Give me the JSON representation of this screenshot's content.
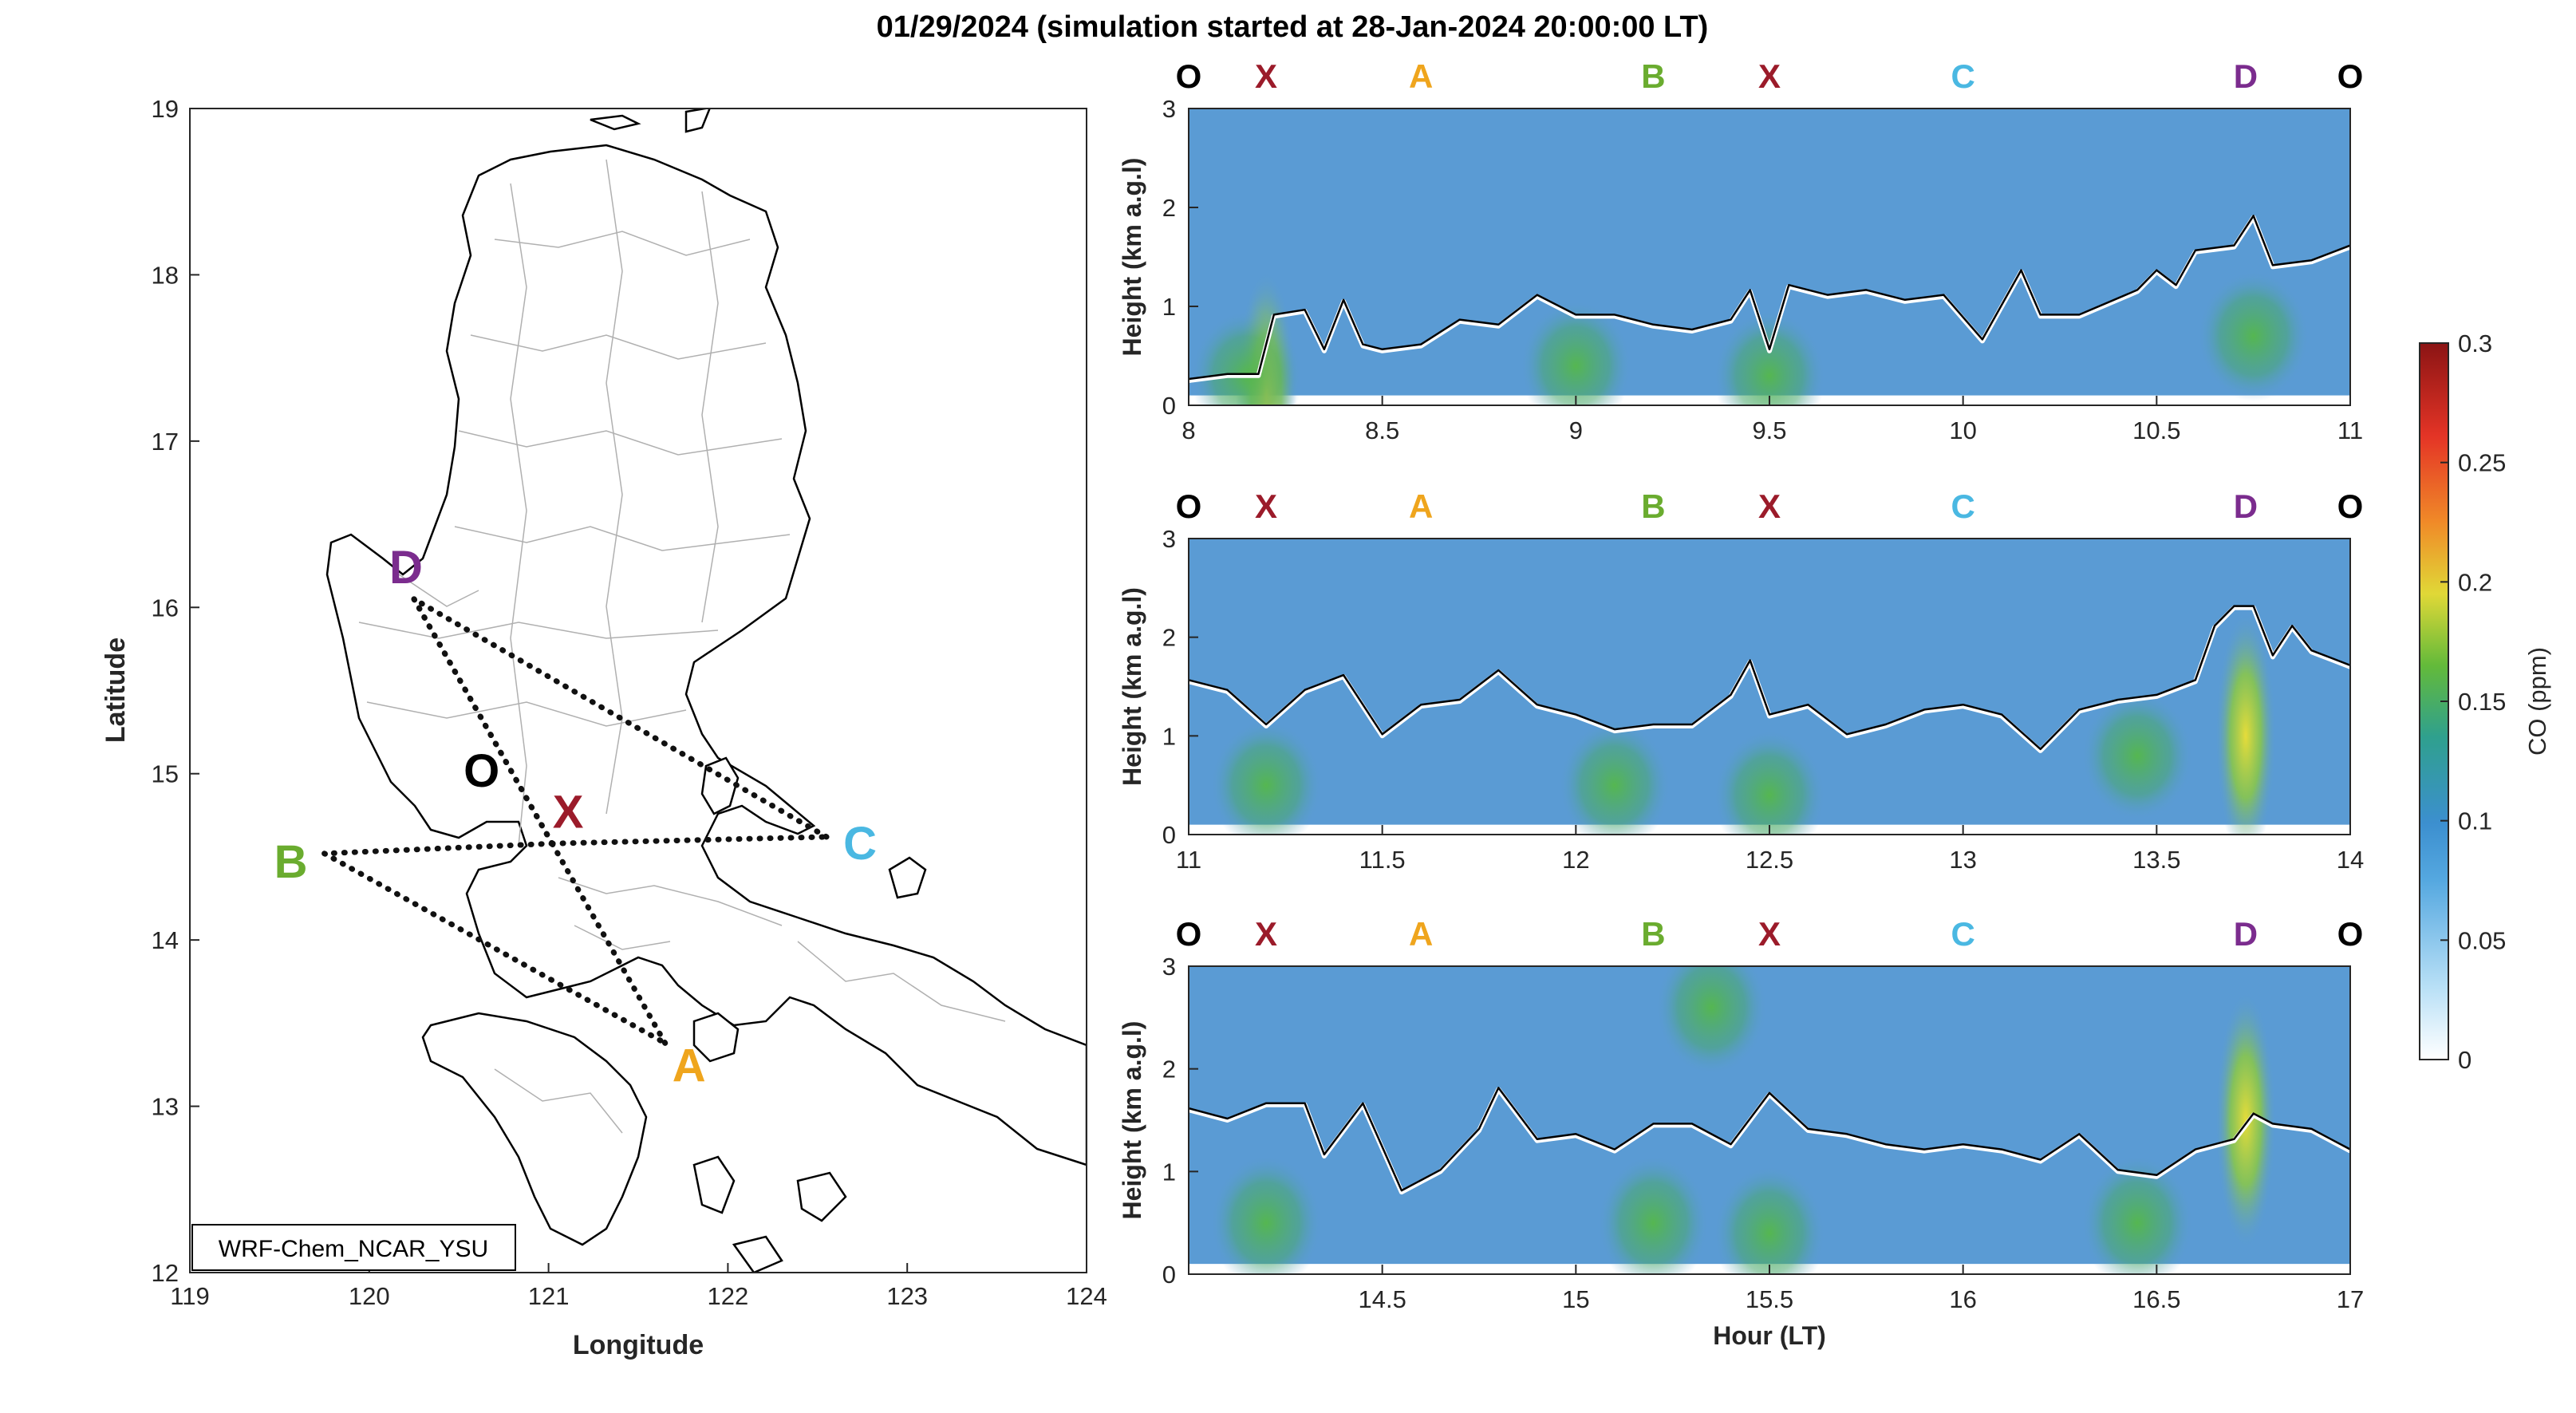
{
  "title": "01/29/2024 (simulation started at 28-Jan-2024 20:00:00 LT)",
  "colors": {
    "field_base": "#5a9bd4",
    "pbl_line": "#000000",
    "route": "#111111",
    "label_O": "#000000",
    "label_X": "#9b1b2a",
    "label_A": "#efa51d",
    "label_B": "#6aac2f",
    "label_C": "#4ab8e2",
    "label_D": "#7b2c8e"
  },
  "map": {
    "model_label": "WRF-Chem_NCAR_YSU",
    "xlabel": "Longitude",
    "ylabel": "Latitude",
    "xlim": [
      119,
      124
    ],
    "ylim": [
      12,
      19
    ],
    "xticks": [
      "119",
      "120",
      "121",
      "122",
      "123",
      "124"
    ],
    "yticks": [
      "12",
      "13",
      "14",
      "15",
      "16",
      "17",
      "18",
      "19"
    ],
    "points": [
      {
        "name": "D",
        "lon": 120.25,
        "lat": 16.05,
        "color": "#7b2c8e"
      },
      {
        "name": "O",
        "lon": 120.68,
        "lat": 14.98,
        "color": "#000000"
      },
      {
        "name": "X",
        "lon": 121.02,
        "lat": 14.58,
        "color": "#9b1b2a"
      },
      {
        "name": "C",
        "lon": 122.55,
        "lat": 14.62,
        "color": "#4ab8e2"
      },
      {
        "name": "B",
        "lon": 119.75,
        "lat": 14.52,
        "color": "#6aac2f"
      },
      {
        "name": "A",
        "lon": 121.65,
        "lat": 13.38,
        "color": "#efa51d"
      }
    ],
    "route_order": [
      "D",
      "X",
      "C",
      "D",
      "X",
      "B",
      "A",
      "X"
    ]
  },
  "chart_data": [
    {
      "type": "heatmap",
      "xlim": [
        8,
        11
      ],
      "ylim": [
        0,
        3
      ],
      "xticks": [
        "8",
        "8.5",
        "9",
        "9.5",
        "10",
        "10.5",
        "11"
      ],
      "yticks": [
        "0",
        "1",
        "2",
        "3"
      ],
      "ylabel": "Height (km a.g.l)",
      "xlabel": "",
      "route_labels": [
        {
          "t": 8.0,
          "name": "O"
        },
        {
          "t": 8.2,
          "name": "X"
        },
        {
          "t": 8.6,
          "name": "A"
        },
        {
          "t": 9.2,
          "name": "B"
        },
        {
          "t": 9.5,
          "name": "X"
        },
        {
          "t": 10.0,
          "name": "C"
        },
        {
          "t": 10.73,
          "name": "D"
        },
        {
          "t": 11.0,
          "name": "O"
        }
      ],
      "pbl_height": {
        "x": [
          8.0,
          8.1,
          8.18,
          8.22,
          8.3,
          8.35,
          8.4,
          8.45,
          8.5,
          8.6,
          8.7,
          8.8,
          8.9,
          9.0,
          9.1,
          9.2,
          9.3,
          9.4,
          9.45,
          9.5,
          9.55,
          9.65,
          9.75,
          9.85,
          9.95,
          10.05,
          10.15,
          10.2,
          10.3,
          10.45,
          10.5,
          10.55,
          10.6,
          10.7,
          10.75,
          10.8,
          10.9,
          11.0
        ],
        "y": [
          0.25,
          0.3,
          0.3,
          0.9,
          0.95,
          0.55,
          1.05,
          0.6,
          0.55,
          0.6,
          0.85,
          0.8,
          1.1,
          0.9,
          0.9,
          0.8,
          0.75,
          0.85,
          1.15,
          0.55,
          1.2,
          1.1,
          1.15,
          1.05,
          1.1,
          0.65,
          1.35,
          0.9,
          0.9,
          1.15,
          1.35,
          1.2,
          1.55,
          1.6,
          1.9,
          1.4,
          1.45,
          1.6
        ]
      },
      "co_hotspots": [
        {
          "t": 8.2,
          "h": 0.1,
          "ppm": 0.16
        },
        {
          "t": 8.15,
          "h": 0.3,
          "ppm": 0.11
        },
        {
          "t": 9.0,
          "h": 0.4,
          "ppm": 0.11
        },
        {
          "t": 9.5,
          "h": 0.3,
          "ppm": 0.12
        },
        {
          "t": 10.75,
          "h": 0.7,
          "ppm": 0.1
        }
      ]
    },
    {
      "type": "heatmap",
      "xlim": [
        11,
        14
      ],
      "ylim": [
        0,
        3
      ],
      "xticks": [
        "11",
        "11.5",
        "12",
        "12.5",
        "13",
        "13.5",
        "14"
      ],
      "yticks": [
        "0",
        "1",
        "2",
        "3"
      ],
      "ylabel": "Height (km a.g.l)",
      "xlabel": "",
      "route_labels": [
        {
          "t": 11.0,
          "name": "O"
        },
        {
          "t": 11.2,
          "name": "X"
        },
        {
          "t": 11.6,
          "name": "A"
        },
        {
          "t": 12.2,
          "name": "B"
        },
        {
          "t": 12.5,
          "name": "X"
        },
        {
          "t": 13.0,
          "name": "C"
        },
        {
          "t": 13.73,
          "name": "D"
        },
        {
          "t": 14.0,
          "name": "O"
        }
      ],
      "pbl_height": {
        "x": [
          11.0,
          11.1,
          11.2,
          11.3,
          11.4,
          11.5,
          11.6,
          11.7,
          11.8,
          11.9,
          12.0,
          12.1,
          12.2,
          12.3,
          12.4,
          12.45,
          12.5,
          12.6,
          12.7,
          12.8,
          12.9,
          13.0,
          13.1,
          13.2,
          13.3,
          13.4,
          13.5,
          13.6,
          13.65,
          13.7,
          13.75,
          13.8,
          13.85,
          13.9,
          14.0
        ],
        "y": [
          1.55,
          1.45,
          1.1,
          1.45,
          1.6,
          1.0,
          1.3,
          1.35,
          1.65,
          1.3,
          1.2,
          1.05,
          1.1,
          1.1,
          1.4,
          1.75,
          1.2,
          1.3,
          1.0,
          1.1,
          1.25,
          1.3,
          1.2,
          0.85,
          1.25,
          1.35,
          1.4,
          1.55,
          2.1,
          2.3,
          2.3,
          1.8,
          2.1,
          1.85,
          1.7
        ]
      },
      "co_hotspots": [
        {
          "t": 11.2,
          "h": 0.5,
          "ppm": 0.11
        },
        {
          "t": 12.1,
          "h": 0.5,
          "ppm": 0.11
        },
        {
          "t": 12.5,
          "h": 0.4,
          "ppm": 0.11
        },
        {
          "t": 13.45,
          "h": 0.8,
          "ppm": 0.11
        },
        {
          "t": 13.73,
          "h": 1.0,
          "ppm": 0.13
        }
      ]
    },
    {
      "type": "heatmap",
      "xlim": [
        14,
        17
      ],
      "ylim": [
        0,
        3
      ],
      "xticks": [
        "14.5",
        "15",
        "15.5",
        "16",
        "16.5",
        "17"
      ],
      "yticks": [
        "0",
        "1",
        "2",
        "3"
      ],
      "ylabel": "Height (km a.g.l)",
      "xlabel": "Hour (LT)",
      "route_labels": [
        {
          "t": 14.0,
          "name": "O"
        },
        {
          "t": 14.2,
          "name": "X"
        },
        {
          "t": 14.6,
          "name": "A"
        },
        {
          "t": 15.2,
          "name": "B"
        },
        {
          "t": 15.5,
          "name": "X"
        },
        {
          "t": 16.0,
          "name": "C"
        },
        {
          "t": 16.73,
          "name": "D"
        },
        {
          "t": 17.0,
          "name": "O"
        }
      ],
      "pbl_height": {
        "x": [
          14.0,
          14.1,
          14.2,
          14.3,
          14.35,
          14.45,
          14.55,
          14.65,
          14.75,
          14.8,
          14.9,
          15.0,
          15.1,
          15.2,
          15.3,
          15.4,
          15.5,
          15.6,
          15.7,
          15.8,
          15.9,
          16.0,
          16.1,
          16.2,
          16.3,
          16.4,
          16.5,
          16.6,
          16.7,
          16.75,
          16.8,
          16.9,
          17.0
        ],
        "y": [
          1.6,
          1.5,
          1.65,
          1.65,
          1.15,
          1.65,
          0.8,
          1.0,
          1.4,
          1.8,
          1.3,
          1.35,
          1.2,
          1.45,
          1.45,
          1.25,
          1.75,
          1.4,
          1.35,
          1.25,
          1.2,
          1.25,
          1.2,
          1.1,
          1.35,
          1.0,
          0.95,
          1.2,
          1.3,
          1.55,
          1.45,
          1.4,
          1.2
        ]
      },
      "co_hotspots": [
        {
          "t": 14.2,
          "h": 0.5,
          "ppm": 0.11
        },
        {
          "t": 15.2,
          "h": 0.5,
          "ppm": 0.11
        },
        {
          "t": 15.35,
          "h": 2.6,
          "ppm": 0.11
        },
        {
          "t": 15.5,
          "h": 0.4,
          "ppm": 0.11
        },
        {
          "t": 16.45,
          "h": 0.5,
          "ppm": 0.11
        },
        {
          "t": 16.73,
          "h": 1.5,
          "ppm": 0.14
        }
      ]
    }
  ],
  "colorbar": {
    "label": "CO (ppm)",
    "ticks": [
      "0",
      "0.05",
      "0.1",
      "0.15",
      "0.2",
      "0.25",
      "0.3"
    ],
    "range": [
      0,
      0.3
    ]
  }
}
